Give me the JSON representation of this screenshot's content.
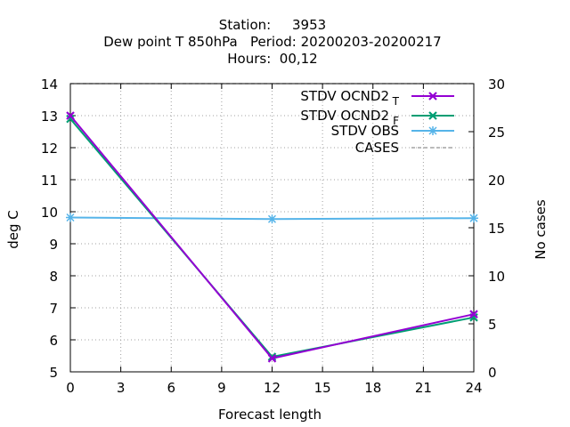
{
  "chart_data": {
    "type": "line",
    "title_lines": [
      "Station:     3953",
      "Dew point T 850hPa   Period: 20200203-20200217",
      "Hours:  00,12"
    ],
    "xlabel": "Forecast length",
    "ylabel": "deg C",
    "y2label": "No cases",
    "x_ticks": [
      0,
      3,
      6,
      9,
      12,
      15,
      18,
      21,
      24
    ],
    "xlim": [
      0,
      24
    ],
    "ylim": [
      5,
      14
    ],
    "y_ticks": [
      5,
      6,
      7,
      8,
      9,
      10,
      11,
      12,
      13,
      14
    ],
    "y2lim": [
      0,
      30
    ],
    "y2_ticks": [
      0,
      5,
      10,
      15,
      20,
      25,
      30
    ],
    "grid": true,
    "legend_position": "top-right",
    "series": [
      {
        "name": "STDV OCND2",
        "subscript": "T",
        "color": "#9400d3",
        "marker": "cross",
        "x": [
          0,
          12,
          24
        ],
        "values": [
          13.0,
          5.42,
          6.8
        ]
      },
      {
        "name": "STDV OCND2",
        "subscript": "F",
        "color": "#009e73",
        "marker": "cross",
        "x": [
          0,
          12,
          24
        ],
        "values": [
          12.9,
          5.47,
          6.7
        ]
      },
      {
        "name": "STDV OCND2",
        "subscript": "",
        "legend_label": "STDV OBS",
        "color": "#56b4e9",
        "marker": "star",
        "x": [
          0,
          12,
          24
        ],
        "values": [
          9.82,
          9.77,
          9.8
        ]
      },
      {
        "name": "CASES",
        "color": "#909090",
        "dashed": true,
        "axis": "y2",
        "x": [
          0,
          12,
          24
        ],
        "values": [
          30,
          30,
          30
        ]
      }
    ]
  }
}
